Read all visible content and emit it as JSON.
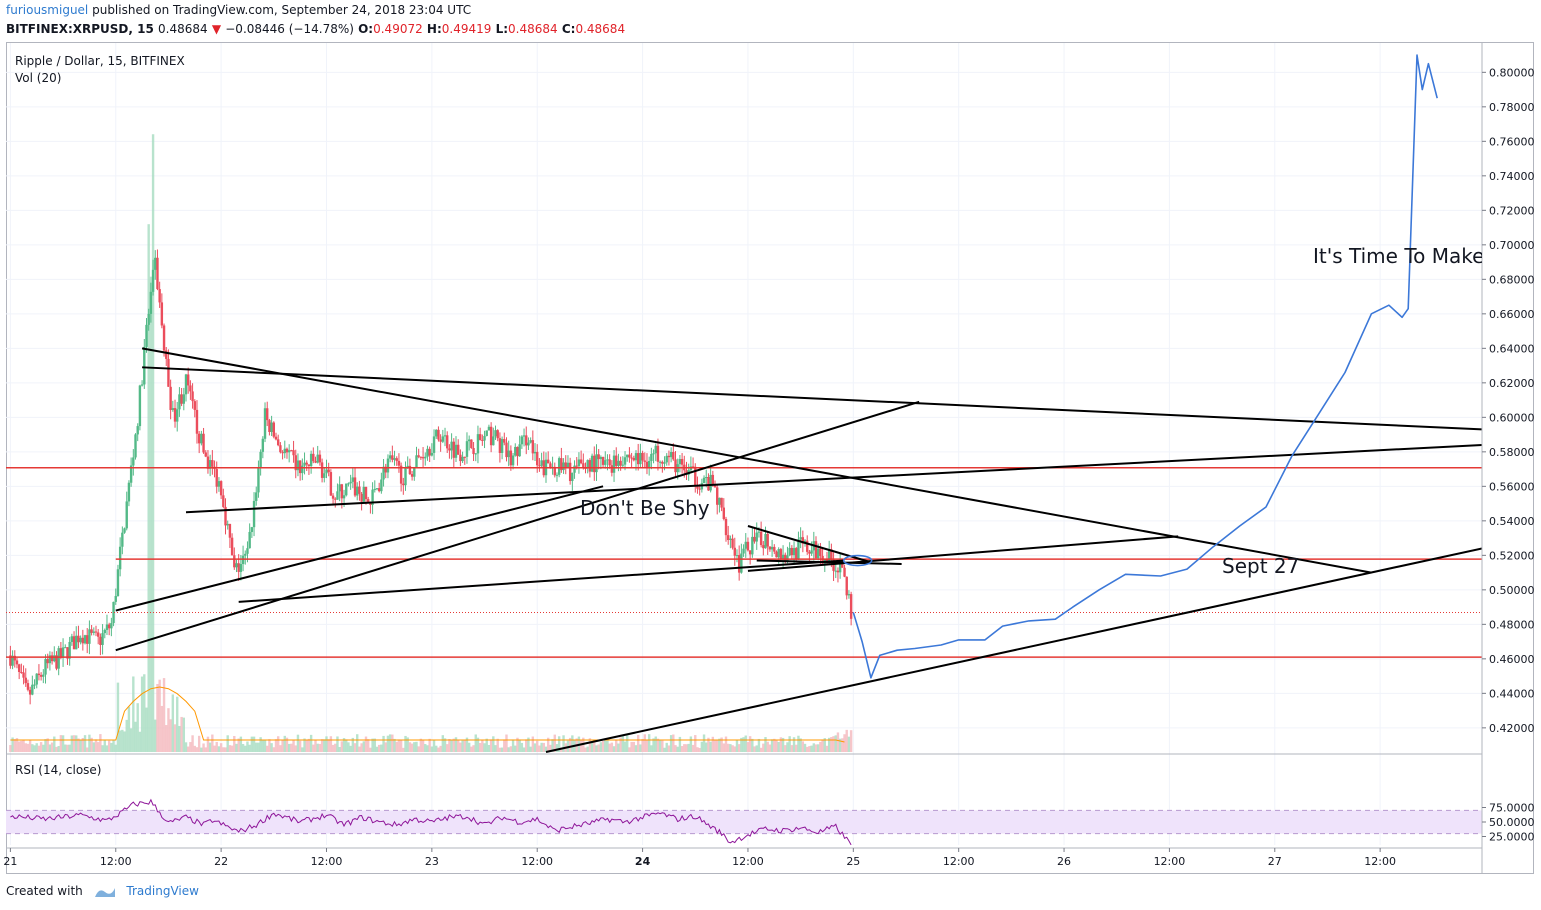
{
  "header": {
    "author": "furiousmiguel",
    "published": "published on TradingView.com, September 24, 2018 23:04 UTC",
    "symbol": "BITFINEX:XRPUSD, 15",
    "last": "0.48684",
    "change": "−0.08446 (−14.78%)",
    "o_label": "O:",
    "o_value": "0.49072",
    "h_label": "H:",
    "h_value": "0.49419",
    "l_label": "L:",
    "l_value": "0.48684",
    "c_label": "C:",
    "c_value": "0.48684"
  },
  "legend": {
    "title": "Ripple / Dollar, 15, BITFINEX",
    "vol": "Vol (20)",
    "rsi": "RSI (14, close)"
  },
  "annotations": {
    "dont_be_shy": "Don't Be Shy",
    "sept27": "Sept 27",
    "time_to_make": "It's Time To Make"
  },
  "footer": {
    "created_with": "Created with",
    "brand": "TradingView"
  },
  "colors": {
    "up": "#53b987",
    "down": "#eb4d5c",
    "support": "#e53935",
    "trend": "#000000",
    "projection": "#3c78d8",
    "rsi_line": "#8e1599",
    "rsi_band": "#efe3fb"
  },
  "chart_data": {
    "type": "candlestick",
    "title": "Ripple / Dollar, 15, BITFINEX",
    "price_ticks": [
      "0.80000",
      "0.78000",
      "0.76000",
      "0.74000",
      "0.72000",
      "0.70000",
      "0.68000",
      "0.66000",
      "0.64000",
      "0.62000",
      "0.60000",
      "0.58000",
      "0.56000",
      "0.54000",
      "0.52000",
      "0.50000",
      "0.48000",
      "0.46000",
      "0.44000",
      "0.42000"
    ],
    "price_values": [
      0.8,
      0.78,
      0.76,
      0.74,
      0.72,
      0.7,
      0.68,
      0.66,
      0.64,
      0.62,
      0.6,
      0.58,
      0.56,
      0.54,
      0.52,
      0.5,
      0.48,
      0.46,
      0.44,
      0.42
    ],
    "ylim": [
      0.406,
      0.817
    ],
    "rsi_ticks": [
      "75.0000",
      "50.0000",
      "25.0000"
    ],
    "rsi_values": [
      75,
      50,
      25
    ],
    "x_ticks": [
      "21",
      "12:00",
      "22",
      "12:00",
      "23",
      "12:00",
      "24",
      "12:00",
      "25",
      "12:00",
      "26",
      "12:00",
      "27",
      "12:00"
    ],
    "x_tick_hours": [
      0,
      12,
      24,
      36,
      48,
      60,
      72,
      84,
      96,
      108,
      120,
      132,
      144,
      156
    ],
    "x_tick_bold": [
      false,
      false,
      false,
      false,
      false,
      false,
      true,
      false,
      false,
      false,
      false,
      false,
      false,
      false
    ],
    "xlim_hours": [
      -0.5,
      167.6
    ],
    "last_price": 0.48684,
    "horizontal_levels": [
      0.5708,
      0.5178,
      0.461
    ],
    "price_path_hours": [
      0,
      2,
      4,
      6,
      8,
      10,
      11.5,
      12.5,
      13.5,
      14.5,
      15.5,
      16.5,
      17.5,
      18.5,
      20,
      22,
      24,
      25.5,
      27,
      29,
      31,
      33,
      35,
      37,
      39,
      41,
      43,
      45,
      47,
      49,
      51,
      53,
      55,
      57,
      59,
      60,
      62,
      64,
      66,
      68,
      70,
      72,
      74,
      76,
      78,
      80,
      82,
      83,
      84,
      86,
      88,
      90,
      92,
      93,
      94,
      95,
      95.8
    ],
    "price_path_values": [
      0.462,
      0.438,
      0.455,
      0.462,
      0.475,
      0.47,
      0.48,
      0.52,
      0.56,
      0.6,
      0.65,
      0.69,
      0.64,
      0.6,
      0.62,
      0.58,
      0.56,
      0.51,
      0.52,
      0.6,
      0.58,
      0.57,
      0.575,
      0.555,
      0.56,
      0.55,
      0.575,
      0.565,
      0.58,
      0.59,
      0.58,
      0.585,
      0.59,
      0.575,
      0.59,
      0.57,
      0.572,
      0.568,
      0.574,
      0.572,
      0.578,
      0.575,
      0.58,
      0.572,
      0.565,
      0.56,
      0.53,
      0.515,
      0.525,
      0.53,
      0.52,
      0.525,
      0.522,
      0.52,
      0.515,
      0.505,
      0.487
    ],
    "projection_hours": [
      96,
      97,
      98,
      99,
      101,
      103,
      106,
      108,
      111,
      113,
      116,
      119,
      121,
      124,
      127,
      131,
      134,
      137,
      140,
      143,
      146,
      149,
      152,
      155,
      157,
      158.5,
      159.2,
      160.2,
      160.8,
      161.5,
      162.5
    ],
    "projection_values": [
      0.487,
      0.47,
      0.449,
      0.462,
      0.465,
      0.466,
      0.468,
      0.471,
      0.471,
      0.479,
      0.482,
      0.483,
      0.49,
      0.5,
      0.509,
      0.508,
      0.512,
      0.525,
      0.537,
      0.548,
      0.578,
      0.602,
      0.626,
      0.66,
      0.665,
      0.658,
      0.663,
      0.81,
      0.79,
      0.805,
      0.785
    ],
    "rsi_path_hours": [
      0,
      4,
      8,
      11,
      12.5,
      14,
      16,
      18,
      20,
      22,
      23,
      25,
      26,
      28,
      30,
      33,
      36,
      38,
      40,
      42,
      44,
      46,
      48,
      50,
      52,
      54,
      56,
      58,
      60,
      62,
      64,
      66,
      68,
      70,
      72,
      74,
      76,
      78,
      80,
      81,
      82,
      84,
      86,
      88,
      90,
      92,
      94,
      95.8
    ],
    "rsi_path_values": [
      60,
      55,
      62,
      52,
      65,
      80,
      85,
      48,
      58,
      45,
      53,
      40,
      33,
      45,
      65,
      50,
      62,
      45,
      58,
      50,
      45,
      55,
      50,
      58,
      60,
      45,
      58,
      50,
      55,
      35,
      42,
      48,
      55,
      50,
      58,
      65,
      55,
      60,
      40,
      30,
      15,
      28,
      38,
      35,
      40,
      32,
      42,
      10
    ],
    "volume_scale_note": "volume bars relative only",
    "trendlines": [
      {
        "h1": 15.0,
        "p1": 0.64,
        "h2": 155.0,
        "p2": 0.51
      },
      {
        "h1": 15.0,
        "p1": 0.629,
        "h2": 167.6,
        "p2": 0.593
      },
      {
        "h1": 12.0,
        "p1": 0.488,
        "h2": 67.5,
        "p2": 0.56
      },
      {
        "h1": 12.0,
        "p1": 0.465,
        "h2": 103.5,
        "p2": 0.609
      },
      {
        "h1": 20.0,
        "p1": 0.545,
        "h2": 167.6,
        "p2": 0.584
      },
      {
        "h1": 26.0,
        "p1": 0.493,
        "h2": 95.0,
        "p2": 0.517
      },
      {
        "h1": 84.0,
        "p1": 0.511,
        "h2": 133.0,
        "p2": 0.531
      },
      {
        "h1": 61.0,
        "p1": 0.406,
        "h2": 167.6,
        "p2": 0.524
      },
      {
        "h1": 84.0,
        "p1": 0.537,
        "h2": 98.0,
        "p2": 0.516
      },
      {
        "h1": 85.0,
        "p1": 0.517,
        "h2": 101.5,
        "p2": 0.515
      }
    ]
  }
}
